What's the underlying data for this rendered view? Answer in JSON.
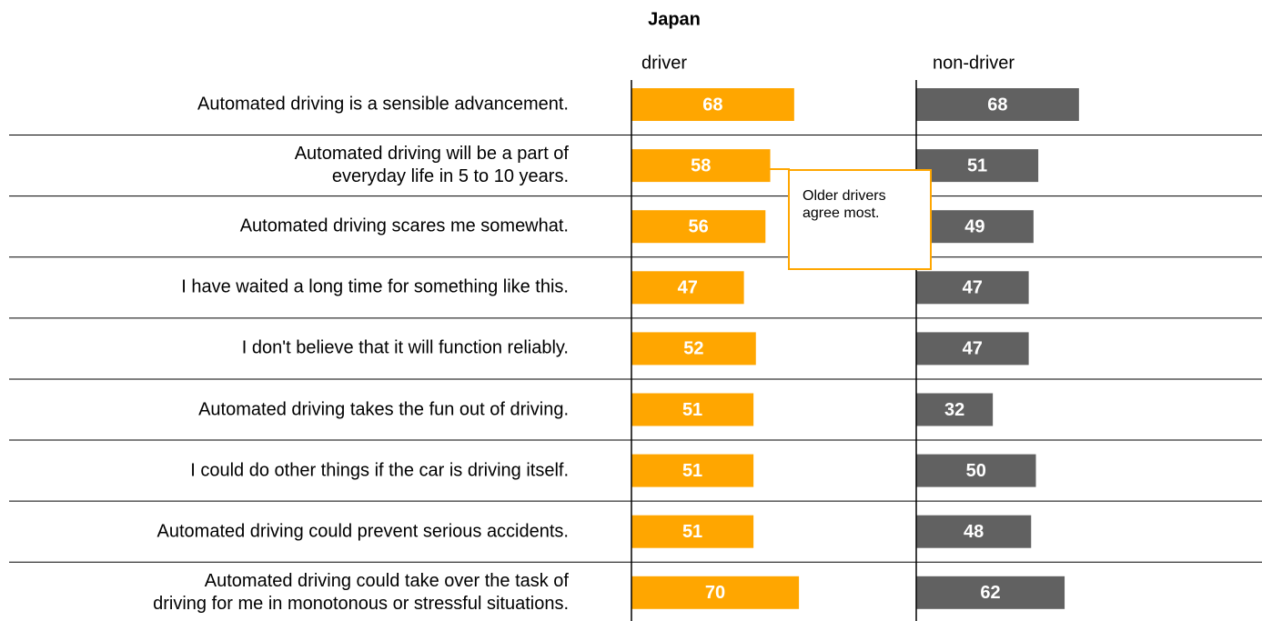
{
  "chart_data": {
    "type": "bar",
    "orientation": "horizontal",
    "title": "Japan",
    "categories": [
      "Automated driving is a sensible advancement.",
      "Automated driving will be a part of\neveryday life in 5 to 10 years.",
      "Automated driving scares me somewhat.",
      "I have waited a long time for something like this.",
      "I don't believe that it will function reliably.",
      "Automated driving takes the fun out of driving.",
      "I could do other things if the car is driving itself.",
      "Automated driving could prevent serious accidents.",
      "Automated driving could take over the task of\ndriving for me in monotonous or stressful situations."
    ],
    "series": [
      {
        "name": "driver",
        "color": "#ffa600",
        "values": [
          68,
          58,
          56,
          47,
          52,
          51,
          51,
          51,
          70
        ]
      },
      {
        "name": "non-driver",
        "color": "#616161",
        "values": [
          68,
          51,
          49,
          47,
          47,
          32,
          50,
          48,
          62
        ]
      }
    ],
    "xlim": [
      0,
      100
    ],
    "annotation": "Older drivers agree most."
  }
}
